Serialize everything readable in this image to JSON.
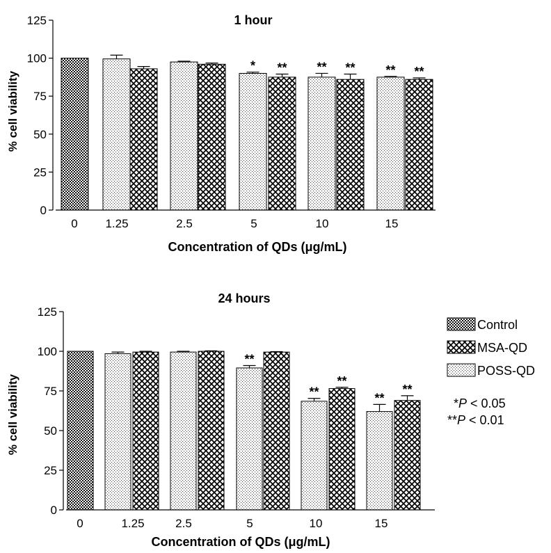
{
  "chart_data": [
    {
      "type": "bar",
      "title": "1 hour",
      "xlabel": "Concentration of QDs (μg/mL)",
      "ylabel": "% cell viability",
      "ylim": [
        0,
        125
      ],
      "yticks": [
        0,
        25,
        50,
        75,
        100,
        125
      ],
      "categories": [
        "0",
        "1.25",
        "2.5",
        "5",
        "10",
        "15"
      ],
      "bars": [
        {
          "category": "0",
          "series": "Control",
          "value": 100,
          "error": 0,
          "sig": ""
        },
        {
          "category": "1.25",
          "series": "POSS-QD",
          "value": 99.5,
          "error": 2.5,
          "sig": ""
        },
        {
          "category": "1.25",
          "series": "MSA-QD",
          "value": 93,
          "error": 1.5,
          "sig": ""
        },
        {
          "category": "2.5",
          "series": "POSS-QD",
          "value": 97.5,
          "error": 0.5,
          "sig": ""
        },
        {
          "category": "2.5",
          "series": "MSA-QD",
          "value": 96,
          "error": 0.8,
          "sig": ""
        },
        {
          "category": "5",
          "series": "POSS-QD",
          "value": 90,
          "error": 0.8,
          "sig": "*"
        },
        {
          "category": "5",
          "series": "MSA-QD",
          "value": 87.5,
          "error": 2,
          "sig": "**"
        },
        {
          "category": "10",
          "series": "POSS-QD",
          "value": 87.5,
          "error": 2.5,
          "sig": "**"
        },
        {
          "category": "10",
          "series": "MSA-QD",
          "value": 86,
          "error": 3.5,
          "sig": "**"
        },
        {
          "category": "15",
          "series": "POSS-QD",
          "value": 87.5,
          "error": 0.5,
          "sig": "**"
        },
        {
          "category": "15",
          "series": "MSA-QD",
          "value": 86,
          "error": 1,
          "sig": "**"
        }
      ]
    },
    {
      "type": "bar",
      "title": "24 hours",
      "xlabel": "Concentration of QDs (μg/mL)",
      "ylabel": "% cell viability",
      "ylim": [
        0,
        125
      ],
      "yticks": [
        0,
        25,
        50,
        75,
        100,
        125
      ],
      "categories": [
        "0",
        "1.25",
        "2.5",
        "5",
        "10",
        "15"
      ],
      "bars": [
        {
          "category": "0",
          "series": "Control",
          "value": 100,
          "error": 0,
          "sig": ""
        },
        {
          "category": "1.25",
          "series": "POSS-QD",
          "value": 98.5,
          "error": 1,
          "sig": ""
        },
        {
          "category": "1.25",
          "series": "MSA-QD",
          "value": 99.5,
          "error": 0.5,
          "sig": ""
        },
        {
          "category": "2.5",
          "series": "POSS-QD",
          "value": 99.5,
          "error": 0.5,
          "sig": ""
        },
        {
          "category": "2.5",
          "series": "MSA-QD",
          "value": 100,
          "error": 0.3,
          "sig": ""
        },
        {
          "category": "5",
          "series": "POSS-QD",
          "value": 89.5,
          "error": 1.5,
          "sig": "**"
        },
        {
          "category": "5",
          "series": "MSA-QD",
          "value": 99.5,
          "error": 0.3,
          "sig": ""
        },
        {
          "category": "10",
          "series": "POSS-QD",
          "value": 68.5,
          "error": 1.8,
          "sig": "**"
        },
        {
          "category": "10",
          "series": "MSA-QD",
          "value": 76.5,
          "error": 0.8,
          "sig": "**"
        },
        {
          "category": "15",
          "series": "POSS-QD",
          "value": 62,
          "error": 4.5,
          "sig": "**"
        },
        {
          "category": "15",
          "series": "MSA-QD",
          "value": 69,
          "error": 3,
          "sig": "**"
        }
      ]
    }
  ],
  "legend": {
    "placement": "right of lower chart",
    "items": [
      {
        "label": "Control",
        "pattern": "checker"
      },
      {
        "label": "MSA-QD",
        "pattern": "crosshatch"
      },
      {
        "label": "POSS-QD",
        "pattern": "dots"
      }
    ]
  },
  "significance_note": {
    "line1_prefix": "*",
    "line1_italic": "P",
    "line1_suffix": " < 0.05",
    "line2_prefix": "**",
    "line2_italic": "P",
    "line2_suffix": " < 0.01"
  },
  "colors": {
    "ink": "#000000",
    "background": "#ffffff"
  }
}
